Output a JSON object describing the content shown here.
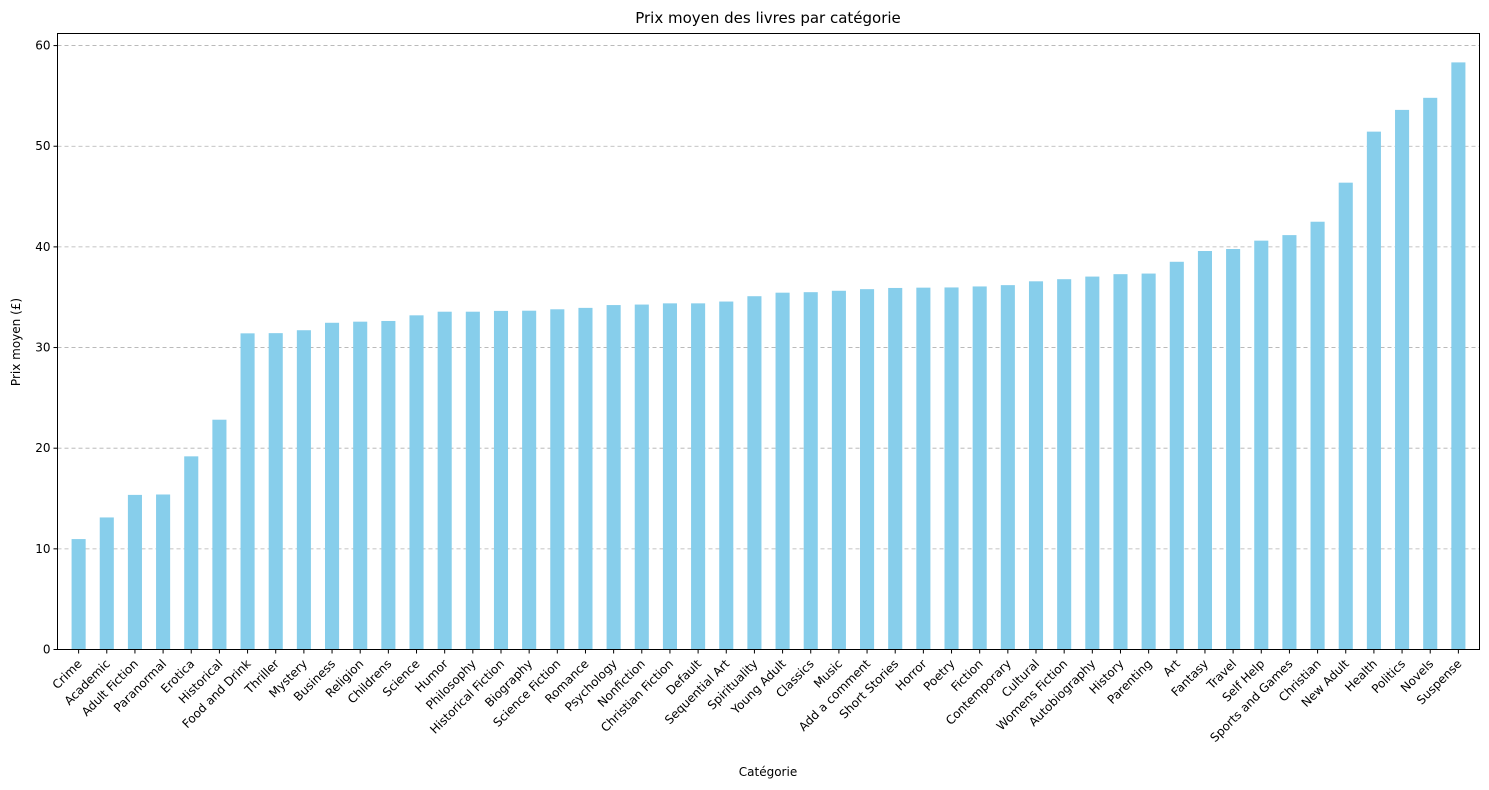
{
  "chart_data": {
    "type": "bar",
    "title": "Prix moyen des livres par catégorie",
    "xlabel": "Catégorie",
    "ylabel": "Prix moyen (£)",
    "ylim": [
      0,
      61.2
    ],
    "yticks": [
      "0",
      "10",
      "20",
      "30",
      "40",
      "50",
      "60"
    ],
    "grid": "y-dashed",
    "bar_color": "#87ceeb",
    "categories": [
      "Crime",
      "Academic",
      "Adult Fiction",
      "Paranormal",
      "Erotica",
      "Historical",
      "Food and Drink",
      "Thriller",
      "Mystery",
      "Business",
      "Religion",
      "Childrens",
      "Science",
      "Humor",
      "Philosophy",
      "Historical Fiction",
      "Biography",
      "Science Fiction",
      "Romance",
      "Psychology",
      "Nonfiction",
      "Christian Fiction",
      "Default",
      "Sequential Art",
      "Spirituality",
      "Young Adult",
      "Classics",
      "Music",
      "Add a comment",
      "Short Stories",
      "Horror",
      "Poetry",
      "Fiction",
      "Contemporary",
      "Cultural",
      "Womens Fiction",
      "Autobiography",
      "History",
      "Parenting",
      "Art",
      "Fantasy",
      "Travel",
      "Self Help",
      "Sports and Games",
      "Christian",
      "New Adult",
      "Health",
      "Politics",
      "Novels",
      "Suspense"
    ],
    "values": [
      10.97,
      13.12,
      15.36,
      15.4,
      19.19,
      22.83,
      31.41,
      31.43,
      31.72,
      32.46,
      32.57,
      32.64,
      33.2,
      33.56,
      33.56,
      33.64,
      33.66,
      33.8,
      33.94,
      34.22,
      34.27,
      34.39,
      34.39,
      34.57,
      35.1,
      35.45,
      35.5,
      35.64,
      35.8,
      35.92,
      35.95,
      35.97,
      36.07,
      36.2,
      36.58,
      36.79,
      37.05,
      37.29,
      37.35,
      38.52,
      39.59,
      39.79,
      40.62,
      41.17,
      42.5,
      46.38,
      51.45,
      53.61,
      54.81,
      58.33
    ]
  }
}
